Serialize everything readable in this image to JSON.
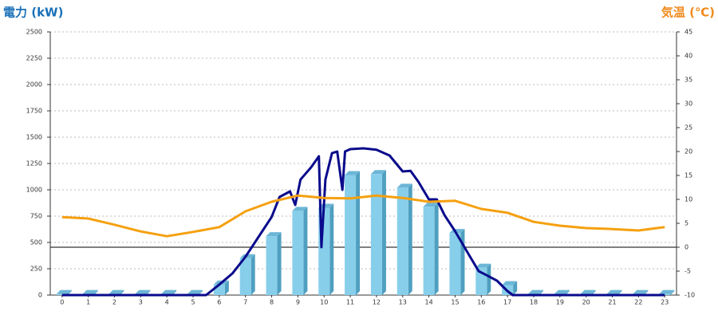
{
  "chart_data": {
    "type": "combo",
    "y_label": "電力 (kW)",
    "y2_label": "気温 (℃)",
    "x": [
      0,
      1,
      2,
      3,
      4,
      5,
      6,
      7,
      8,
      9,
      10,
      11,
      12,
      13,
      14,
      15,
      16,
      17,
      18,
      19,
      20,
      21,
      22,
      23
    ],
    "xlim": [
      -0.45,
      23.45
    ],
    "ylim": [
      0,
      2500
    ],
    "yticks": [
      0,
      250,
      500,
      750,
      1000,
      1250,
      1500,
      1750,
      2000,
      2250,
      2500
    ],
    "y2lim": [
      -10,
      45
    ],
    "y2ticks": [
      -10,
      -5,
      0,
      5,
      10,
      15,
      20,
      25,
      30,
      35,
      40,
      45
    ],
    "grid": true,
    "series": [
      {
        "type": "bar",
        "color": "#87ceeb",
        "values": [
          10,
          10,
          10,
          10,
          10,
          10,
          100,
          350,
          560,
          800,
          830,
          1140,
          1150,
          1020,
          840,
          590,
          260,
          95,
          10,
          10,
          10,
          10,
          10,
          10
        ]
      },
      {
        "type": "line",
        "color": "#0a0a8c",
        "x": [
          0,
          5.5,
          6,
          6.5,
          7,
          7.5,
          8,
          8.3,
          8.7,
          8.9,
          9.1,
          9.5,
          9.8,
          9.9,
          10.05,
          10.3,
          10.5,
          10.7,
          10.8,
          11,
          11.5,
          12,
          12.5,
          13,
          13.3,
          13.6,
          14,
          14.3,
          14.6,
          15,
          15.5,
          15.9,
          16.2,
          16.6,
          17,
          17.2,
          23
        ],
        "values": [
          0,
          0,
          100,
          205,
          364,
          553,
          742,
          932,
          985,
          856,
          1098,
          1212,
          1318,
          455,
          1098,
          1348,
          1364,
          1000,
          1364,
          1386,
          1394,
          1380,
          1326,
          1174,
          1180,
          1076,
          909,
          909,
          758,
          606,
          394,
          227,
          189,
          136,
          38,
          0,
          0
        ]
      },
      {
        "type": "line",
        "axis": "y2",
        "color": "#f5a00f",
        "values": [
          6.3,
          6.0,
          4.7,
          3.3,
          2.3,
          3.2,
          4.2,
          7.5,
          9.5,
          10.8,
          10.3,
          10.2,
          10.8,
          10.3,
          9.5,
          9.7,
          8.0,
          7.2,
          5.3,
          4.5,
          4.0,
          3.8,
          3.5,
          4.2
        ]
      }
    ]
  }
}
